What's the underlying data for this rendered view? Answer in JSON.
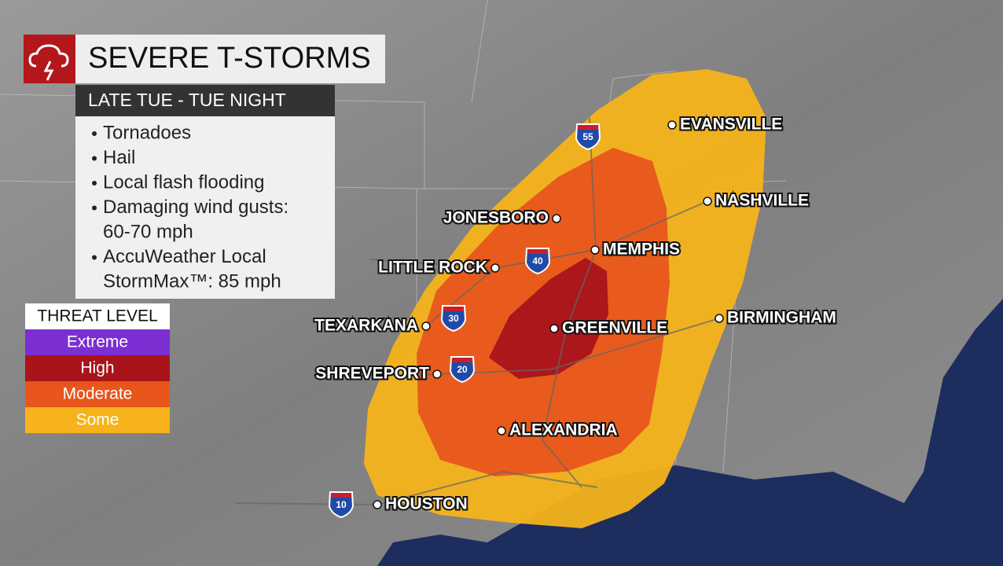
{
  "header": {
    "title": "SEVERE T-STORMS",
    "subtitle": "LATE TUE - TUE NIGHT"
  },
  "bullets": [
    [
      "Tornadoes"
    ],
    [
      "Hail"
    ],
    [
      "Local flash flooding"
    ],
    [
      "Damaging wind gusts:",
      "60-70 mph"
    ],
    [
      "AccuWeather Local",
      "StormMax™: 85 mph"
    ]
  ],
  "legend": {
    "title": "THREAT LEVEL",
    "levels": [
      {
        "label": "Extreme",
        "color": "#7b2fd2"
      },
      {
        "label": "High",
        "color": "#a8141a"
      },
      {
        "label": "Moderate",
        "color": "#e8561c"
      },
      {
        "label": "Some",
        "color": "#f6b31b"
      }
    ]
  },
  "cities": [
    "EVANSVILLE",
    "NASHVILLE",
    "JONESBORO",
    "MEMPHIS",
    "LITTLE ROCK",
    "BIRMINGHAM",
    "TEXARKANA",
    "GREENVILLE",
    "SHREVEPORT",
    "ALEXANDRIA",
    "HOUSTON"
  ],
  "interstates": [
    "55",
    "40",
    "30",
    "20",
    "10"
  ]
}
